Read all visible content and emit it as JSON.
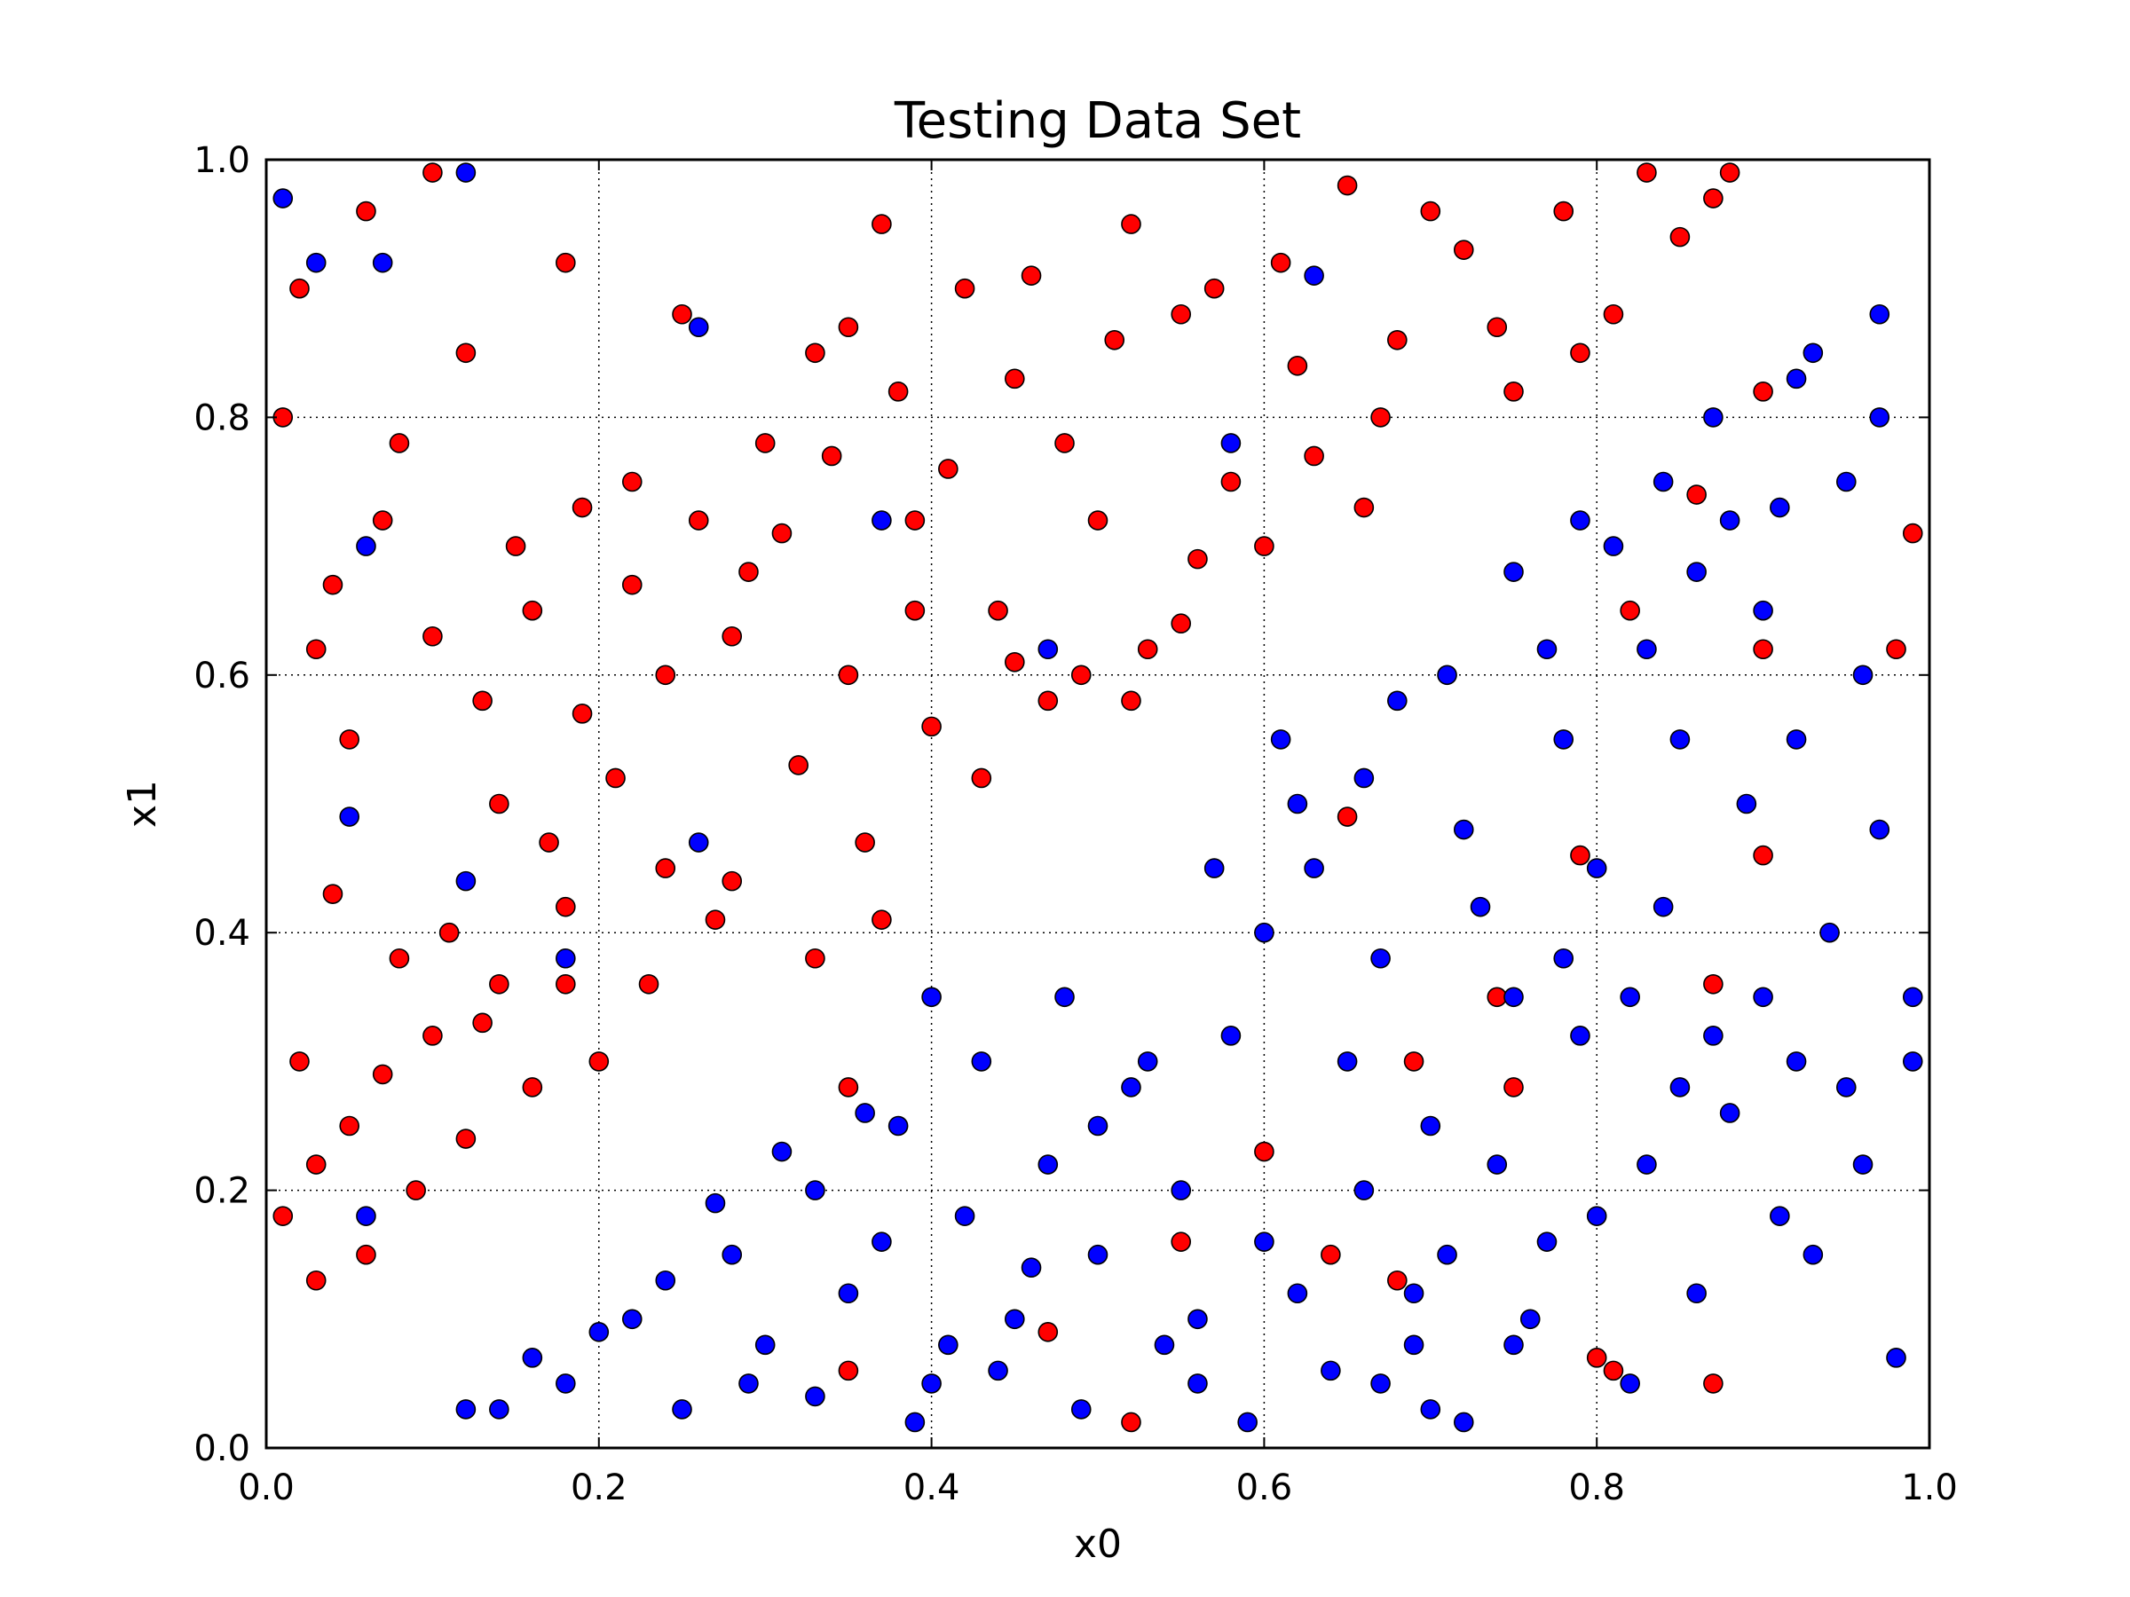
{
  "chart_data": {
    "type": "scatter",
    "title": "Testing Data Set",
    "xlabel": "x0",
    "ylabel": "x1",
    "xlim": [
      0.0,
      1.0
    ],
    "ylim": [
      0.0,
      1.0
    ],
    "xticks": [
      "0.0",
      "0.2",
      "0.4",
      "0.6",
      "0.8",
      "1.0"
    ],
    "yticks": [
      "0.0",
      "0.2",
      "0.4",
      "0.6",
      "0.8",
      "1.0"
    ],
    "grid": true,
    "marker_colors": {
      "red": "#ff0000",
      "blue": "#0000ff"
    },
    "series": [
      {
        "color": "#ff0000",
        "points": [
          [
            0.03,
            0.62
          ],
          [
            0.05,
            0.55
          ],
          [
            0.08,
            0.78
          ],
          [
            0.12,
            0.85
          ],
          [
            0.15,
            0.7
          ],
          [
            0.18,
            0.92
          ],
          [
            0.22,
            0.75
          ],
          [
            0.25,
            0.88
          ],
          [
            0.02,
            0.9
          ],
          [
            0.06,
            0.96
          ],
          [
            0.1,
            0.99
          ],
          [
            0.04,
            0.43
          ],
          [
            0.08,
            0.38
          ],
          [
            0.13,
            0.33
          ],
          [
            0.17,
            0.47
          ],
          [
            0.21,
            0.52
          ],
          [
            0.28,
            0.63
          ],
          [
            0.31,
            0.71
          ],
          [
            0.35,
            0.6
          ],
          [
            0.39,
            0.65
          ],
          [
            0.33,
            0.85
          ],
          [
            0.37,
            0.95
          ],
          [
            0.42,
            0.9
          ],
          [
            0.45,
            0.83
          ],
          [
            0.48,
            0.78
          ],
          [
            0.52,
            0.95
          ],
          [
            0.55,
            0.88
          ],
          [
            0.58,
            0.75
          ],
          [
            0.61,
            0.92
          ],
          [
            0.65,
            0.98
          ],
          [
            0.68,
            0.86
          ],
          [
            0.72,
            0.93
          ],
          [
            0.75,
            0.82
          ],
          [
            0.78,
            0.96
          ],
          [
            0.81,
            0.88
          ],
          [
            0.85,
            0.94
          ],
          [
            0.88,
            0.99
          ],
          [
            0.9,
            0.82
          ],
          [
            0.44,
            0.65
          ],
          [
            0.47,
            0.58
          ],
          [
            0.5,
            0.72
          ],
          [
            0.53,
            0.62
          ],
          [
            0.56,
            0.69
          ],
          [
            0.6,
            0.7
          ],
          [
            0.63,
            0.77
          ],
          [
            0.66,
            0.73
          ],
          [
            0.4,
            0.56
          ],
          [
            0.43,
            0.52
          ],
          [
            0.36,
            0.47
          ],
          [
            0.32,
            0.53
          ],
          [
            0.27,
            0.41
          ],
          [
            0.23,
            0.36
          ],
          [
            0.2,
            0.3
          ],
          [
            0.16,
            0.28
          ],
          [
            0.12,
            0.24
          ],
          [
            0.09,
            0.2
          ],
          [
            0.06,
            0.15
          ],
          [
            0.03,
            0.13
          ],
          [
            0.01,
            0.18
          ],
          [
            0.02,
            0.3
          ],
          [
            0.05,
            0.25
          ],
          [
            0.11,
            0.4
          ],
          [
            0.14,
            0.5
          ],
          [
            0.19,
            0.57
          ],
          [
            0.24,
            0.6
          ],
          [
            0.29,
            0.68
          ],
          [
            0.34,
            0.77
          ],
          [
            0.38,
            0.82
          ],
          [
            0.41,
            0.76
          ],
          [
            0.46,
            0.91
          ],
          [
            0.51,
            0.86
          ],
          [
            0.57,
            0.9
          ],
          [
            0.62,
            0.84
          ],
          [
            0.67,
            0.8
          ],
          [
            0.7,
            0.96
          ],
          [
            0.74,
            0.87
          ],
          [
            0.79,
            0.85
          ],
          [
            0.83,
            0.99
          ],
          [
            0.87,
            0.97
          ],
          [
            0.01,
            0.8
          ],
          [
            0.04,
            0.67
          ],
          [
            0.07,
            0.72
          ],
          [
            0.1,
            0.63
          ],
          [
            0.13,
            0.58
          ],
          [
            0.16,
            0.65
          ],
          [
            0.19,
            0.73
          ],
          [
            0.22,
            0.67
          ],
          [
            0.26,
            0.72
          ],
          [
            0.3,
            0.78
          ],
          [
            0.35,
            0.87
          ],
          [
            0.39,
            0.72
          ],
          [
            0.45,
            0.61
          ],
          [
            0.49,
            0.6
          ],
          [
            0.52,
            0.58
          ],
          [
            0.55,
            0.64
          ],
          [
            0.37,
            0.41
          ],
          [
            0.33,
            0.38
          ],
          [
            0.28,
            0.44
          ],
          [
            0.24,
            0.45
          ],
          [
            0.18,
            0.42
          ],
          [
            0.14,
            0.36
          ],
          [
            0.1,
            0.32
          ],
          [
            0.07,
            0.29
          ],
          [
            0.03,
            0.22
          ],
          [
            0.79,
            0.46
          ],
          [
            0.9,
            0.62
          ],
          [
            0.98,
            0.62
          ],
          [
            0.86,
            0.74
          ],
          [
            0.82,
            0.65
          ],
          [
            0.6,
            0.23
          ],
          [
            0.64,
            0.15
          ],
          [
            0.68,
            0.13
          ],
          [
            0.55,
            0.16
          ],
          [
            0.47,
            0.09
          ],
          [
            0.35,
            0.06
          ],
          [
            0.52,
            0.02
          ],
          [
            0.81,
            0.06
          ],
          [
            0.87,
            0.05
          ],
          [
            0.69,
            0.3
          ],
          [
            0.75,
            0.28
          ],
          [
            0.74,
            0.35
          ],
          [
            0.65,
            0.49
          ],
          [
            0.8,
            0.07
          ],
          [
            0.87,
            0.36
          ],
          [
            0.9,
            0.46
          ],
          [
            0.99,
            0.71
          ],
          [
            0.35,
            0.28
          ],
          [
            0.18,
            0.36
          ]
        ]
      },
      {
        "color": "#0000ff",
        "points": [
          [
            0.6,
            0.4
          ],
          [
            0.65,
            0.3
          ],
          [
            0.7,
            0.25
          ],
          [
            0.75,
            0.35
          ],
          [
            0.8,
            0.45
          ],
          [
            0.85,
            0.55
          ],
          [
            0.9,
            0.65
          ],
          [
            0.95,
            0.75
          ],
          [
            0.55,
            0.2
          ],
          [
            0.5,
            0.15
          ],
          [
            0.45,
            0.1
          ],
          [
            0.4,
            0.05
          ],
          [
            0.35,
            0.12
          ],
          [
            0.3,
            0.08
          ],
          [
            0.25,
            0.03
          ],
          [
            0.62,
            0.5
          ],
          [
            0.68,
            0.58
          ],
          [
            0.72,
            0.48
          ],
          [
            0.78,
            0.55
          ],
          [
            0.83,
            0.62
          ],
          [
            0.88,
            0.72
          ],
          [
            0.92,
            0.83
          ],
          [
            0.97,
            0.88
          ],
          [
            0.58,
            0.32
          ],
          [
            0.52,
            0.28
          ],
          [
            0.47,
            0.22
          ],
          [
            0.42,
            0.18
          ],
          [
            0.38,
            0.25
          ],
          [
            0.33,
            0.2
          ],
          [
            0.28,
            0.15
          ],
          [
            0.22,
            0.1
          ],
          [
            0.18,
            0.05
          ],
          [
            0.14,
            0.03
          ],
          [
            0.12,
            0.03
          ],
          [
            0.66,
            0.2
          ],
          [
            0.71,
            0.15
          ],
          [
            0.76,
            0.1
          ],
          [
            0.82,
            0.05
          ],
          [
            0.86,
            0.12
          ],
          [
            0.91,
            0.18
          ],
          [
            0.96,
            0.22
          ],
          [
            0.99,
            0.3
          ],
          [
            0.94,
            0.4
          ],
          [
            0.89,
            0.5
          ],
          [
            0.84,
            0.42
          ],
          [
            0.79,
            0.32
          ],
          [
            0.74,
            0.22
          ],
          [
            0.69,
            0.12
          ],
          [
            0.64,
            0.06
          ],
          [
            0.59,
            0.02
          ],
          [
            0.54,
            0.08
          ],
          [
            0.49,
            0.03
          ],
          [
            0.44,
            0.06
          ],
          [
            0.39,
            0.02
          ],
          [
            0.57,
            0.45
          ],
          [
            0.61,
            0.55
          ],
          [
            0.67,
            0.38
          ],
          [
            0.73,
            0.42
          ],
          [
            0.77,
            0.62
          ],
          [
            0.81,
            0.7
          ],
          [
            0.86,
            0.68
          ],
          [
            0.92,
            0.55
          ],
          [
            0.97,
            0.48
          ],
          [
            0.99,
            0.35
          ],
          [
            0.95,
            0.28
          ],
          [
            0.9,
            0.35
          ],
          [
            0.85,
            0.28
          ],
          [
            0.8,
            0.18
          ],
          [
            0.75,
            0.08
          ],
          [
            0.7,
            0.03
          ],
          [
            0.48,
            0.35
          ],
          [
            0.43,
            0.3
          ],
          [
            0.4,
            0.35
          ],
          [
            0.36,
            0.26
          ],
          [
            0.31,
            0.23
          ],
          [
            0.27,
            0.19
          ],
          [
            0.5,
            0.25
          ],
          [
            0.53,
            0.3
          ],
          [
            0.56,
            0.1
          ],
          [
            0.62,
            0.12
          ],
          [
            0.67,
            0.05
          ],
          [
            0.72,
            0.02
          ],
          [
            0.77,
            0.16
          ],
          [
            0.83,
            0.22
          ],
          [
            0.88,
            0.26
          ],
          [
            0.93,
            0.15
          ],
          [
            0.98,
            0.07
          ],
          [
            0.96,
            0.6
          ],
          [
            0.91,
            0.73
          ],
          [
            0.87,
            0.8
          ],
          [
            0.93,
            0.85
          ],
          [
            0.97,
            0.8
          ],
          [
            0.84,
            0.75
          ],
          [
            0.79,
            0.72
          ],
          [
            0.75,
            0.68
          ],
          [
            0.71,
            0.6
          ],
          [
            0.66,
            0.52
          ],
          [
            0.63,
            0.45
          ],
          [
            0.78,
            0.38
          ],
          [
            0.82,
            0.35
          ],
          [
            0.87,
            0.32
          ],
          [
            0.92,
            0.3
          ],
          [
            0.69,
            0.08
          ],
          [
            0.6,
            0.16
          ],
          [
            0.56,
            0.05
          ],
          [
            0.46,
            0.14
          ],
          [
            0.41,
            0.08
          ],
          [
            0.37,
            0.16
          ],
          [
            0.33,
            0.04
          ],
          [
            0.29,
            0.05
          ],
          [
            0.24,
            0.13
          ],
          [
            0.2,
            0.09
          ],
          [
            0.16,
            0.07
          ],
          [
            0.01,
            0.97
          ],
          [
            0.03,
            0.92
          ],
          [
            0.06,
            0.7
          ],
          [
            0.05,
            0.49
          ],
          [
            0.18,
            0.38
          ],
          [
            0.12,
            0.44
          ],
          [
            0.26,
            0.87
          ],
          [
            0.37,
            0.72
          ],
          [
            0.47,
            0.62
          ],
          [
            0.58,
            0.78
          ],
          [
            0.26,
            0.47
          ],
          [
            0.63,
            0.91
          ],
          [
            0.07,
            0.92
          ],
          [
            0.12,
            0.99
          ],
          [
            0.06,
            0.18
          ]
        ]
      }
    ]
  }
}
